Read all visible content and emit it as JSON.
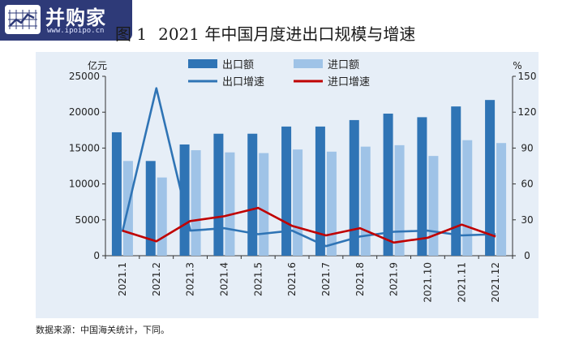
{
  "watermark": {
    "brand": "并购家",
    "url": "www.ipoipo.cn"
  },
  "figure": {
    "number": "图 1",
    "title": "2021 年中国月度进出口规模与增速"
  },
  "source_note": "数据来源：中国海关统计，下同。",
  "colors": {
    "panel_bg": "#e6eef7",
    "export_bar": "#2f74b5",
    "import_bar": "#9fc3e7",
    "export_growth": "#2f74b5",
    "import_growth": "#c00000"
  },
  "chart_data": {
    "type": "bar",
    "categories": [
      "2021.1",
      "2021.2",
      "2021.3",
      "2021.4",
      "2021.5",
      "2021.6",
      "2021.7",
      "2021.8",
      "2021.9",
      "2021.10",
      "2021.11",
      "2021.12"
    ],
    "y_left": {
      "unit_label": "亿元",
      "ylim": [
        0,
        25000
      ],
      "ticks": [
        0,
        5000,
        10000,
        15000,
        20000,
        25000
      ]
    },
    "y_right": {
      "unit_label": "%",
      "ylim": [
        0,
        150
      ],
      "ticks": [
        0,
        30,
        60,
        90,
        120,
        150
      ]
    },
    "series": [
      {
        "name": "出口额",
        "kind": "bar",
        "axis": "left",
        "values": [
          17200,
          13200,
          15500,
          17000,
          17000,
          18000,
          18000,
          18900,
          19800,
          19300,
          20800,
          21700
        ]
      },
      {
        "name": "进口额",
        "kind": "bar",
        "axis": "left",
        "values": [
          13200,
          10900,
          14700,
          14400,
          14300,
          14800,
          14500,
          15200,
          15400,
          13900,
          16100,
          15700
        ]
      },
      {
        "name": "出口增速",
        "kind": "line",
        "axis": "right",
        "values": [
          20,
          140,
          21,
          23,
          18,
          21,
          8,
          16,
          20,
          21,
          17,
          18
        ]
      },
      {
        "name": "进口增速",
        "kind": "line",
        "axis": "right",
        "values": [
          21,
          12,
          29,
          33,
          40,
          25,
          17,
          23,
          11,
          15,
          26,
          16
        ]
      }
    ],
    "grid": false,
    "legend_position": "top-center"
  }
}
